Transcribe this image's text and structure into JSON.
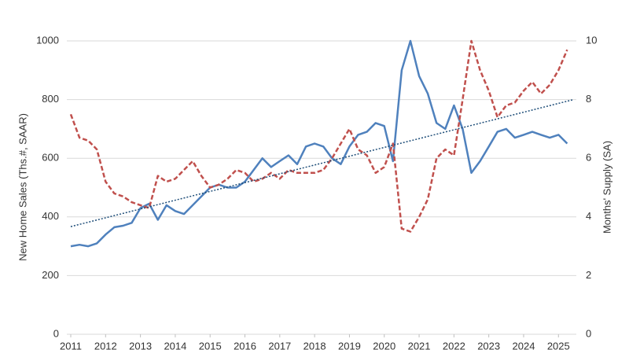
{
  "chart_data": {
    "type": "line",
    "y_label": "New Home Sales (Ths.#, SAAR)",
    "y2_label": "Months' Supply (SA)",
    "x": [
      2011,
      2011.25,
      2011.5,
      2011.75,
      2012,
      2012.25,
      2012.5,
      2012.75,
      2013,
      2013.25,
      2013.5,
      2013.75,
      2014,
      2014.25,
      2014.5,
      2014.75,
      2015,
      2015.25,
      2015.5,
      2015.75,
      2016,
      2016.25,
      2016.5,
      2016.75,
      2017,
      2017.25,
      2017.5,
      2017.75,
      2018,
      2018.25,
      2018.5,
      2018.75,
      2019,
      2019.25,
      2019.5,
      2019.75,
      2020,
      2020.25,
      2020.5,
      2020.75,
      2021,
      2021.25,
      2021.5,
      2021.75,
      2022,
      2022.25,
      2022.5,
      2022.75,
      2023,
      2023.25,
      2023.5,
      2023.75,
      2024,
      2024.25,
      2024.5,
      2024.75,
      2025,
      2025.25
    ],
    "series": [
      {
        "color": "#4f81bd",
        "dash": "solid",
        "axis": "y",
        "values": [
          300,
          305,
          300,
          310,
          340,
          365,
          370,
          380,
          430,
          445,
          390,
          440,
          420,
          410,
          440,
          470,
          500,
          510,
          500,
          500,
          520,
          560,
          600,
          570,
          590,
          610,
          580,
          640,
          650,
          640,
          600,
          580,
          640,
          680,
          690,
          720,
          710,
          590,
          900,
          1000,
          880,
          820,
          720,
          700,
          780,
          700,
          550,
          590,
          640,
          690,
          700,
          670,
          680,
          690,
          680,
          670,
          680,
          650
        ]
      },
      {
        "color": "#c0504d",
        "dash": "dashed",
        "axis": "y2",
        "values": [
          7.5,
          6.7,
          6.6,
          6.3,
          5.2,
          4.8,
          4.7,
          4.5,
          4.4,
          4.3,
          5.4,
          5.2,
          5.3,
          5.6,
          5.9,
          5.4,
          5.0,
          5.1,
          5.3,
          5.6,
          5.5,
          5.2,
          5.3,
          5.5,
          5.3,
          5.6,
          5.5,
          5.5,
          5.5,
          5.6,
          6.0,
          6.5,
          7.0,
          6.3,
          6.1,
          5.5,
          5.7,
          6.5,
          3.6,
          3.5,
          4.0,
          4.6,
          6.0,
          6.3,
          6.1,
          8.0,
          10.0,
          9.0,
          8.3,
          7.4,
          7.8,
          7.9,
          8.3,
          8.6,
          8.2,
          8.5,
          9.0,
          9.7
        ]
      },
      {
        "color": "#1f4e79",
        "dash": "dotted",
        "axis": "y",
        "x": [
          2011,
          2025.4
        ],
        "values": [
          367,
          799
        ]
      }
    ],
    "xlim": [
      2011,
      2025.4
    ],
    "xticks": [
      2011,
      2012,
      2013,
      2014,
      2015,
      2016,
      2017,
      2018,
      2019,
      2020,
      2021,
      2022,
      2023,
      2024,
      2025
    ],
    "ylim": [
      0,
      1000
    ],
    "yticks": [
      0,
      200,
      400,
      600,
      800,
      1000
    ],
    "y2lim": [
      0,
      10
    ],
    "y2ticks": [
      0,
      2,
      4,
      6,
      8,
      10
    ],
    "grid": true
  }
}
